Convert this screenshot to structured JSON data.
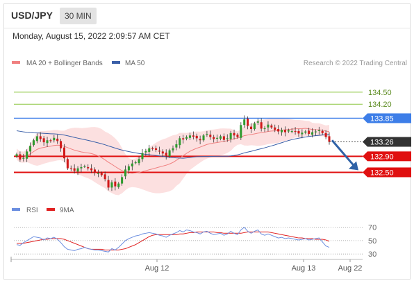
{
  "header": {
    "symbol": "USD/JPY",
    "timeframe": "30 MIN",
    "datetime": "Monday, August 15, 2022 2:09:57 AM CET"
  },
  "legend": {
    "items": [
      {
        "label": "MA 20 + Bollinger Bands",
        "color": "#f08080"
      },
      {
        "label": "MA 50",
        "color": "#3a5fa8"
      }
    ],
    "credit": "Research © 2022 Trading Central"
  },
  "rsi_legend": {
    "items": [
      {
        "label": "RSI",
        "color": "#6b8ee0"
      },
      {
        "label": "9MA",
        "color": "#e02020"
      }
    ]
  },
  "chart_data": [
    {
      "type": "candlestick",
      "ylim": [
        131.85,
        135.0
      ],
      "price_levels": [
        {
          "value": 134.5,
          "label": "134.50",
          "role": "resistance",
          "color": "#8cc63f"
        },
        {
          "value": 134.2,
          "label": "134.20",
          "role": "resistance",
          "color": "#8cc63f"
        },
        {
          "value": 133.85,
          "label": "133.85",
          "role": "pivot",
          "color": "#3d7ee8"
        },
        {
          "value": 132.9,
          "label": "132.90",
          "role": "support",
          "color": "#e01010"
        },
        {
          "value": 132.5,
          "label": "132.50",
          "role": "support",
          "color": "#e01010"
        }
      ],
      "last_price": {
        "value": 133.26,
        "label": "133.26"
      },
      "close": [
        132.95,
        132.82,
        132.86,
        133.02,
        133.16,
        133.3,
        133.4,
        133.33,
        133.25,
        133.3,
        133.28,
        133.36,
        133.28,
        133.1,
        132.85,
        132.6,
        132.58,
        132.54,
        132.6,
        132.63,
        132.65,
        132.6,
        132.55,
        132.5,
        132.48,
        132.43,
        132.33,
        132.12,
        132.25,
        132.15,
        132.22,
        132.38,
        132.57,
        132.65,
        132.72,
        132.75,
        132.83,
        132.98,
        133.03,
        133.1,
        133.08,
        133.06,
        133.02,
        132.97,
        132.92,
        133.05,
        133.1,
        133.2,
        133.35,
        133.32,
        133.38,
        133.42,
        133.39,
        133.35,
        133.3,
        133.42,
        133.46,
        133.38,
        133.33,
        133.36,
        133.4,
        133.31,
        133.35,
        133.48,
        133.42,
        133.38,
        133.68,
        133.82,
        133.66,
        133.58,
        133.72,
        133.77,
        133.59,
        133.6,
        133.69,
        133.62,
        133.56,
        133.52,
        133.56,
        133.5,
        133.55,
        133.53,
        133.51,
        133.47,
        133.49,
        133.52,
        133.46,
        133.5,
        133.52,
        133.55,
        133.48,
        133.38,
        133.26
      ],
      "x_ticks": [
        "Aug 12",
        "Aug 13",
        "Aug 22"
      ],
      "forecast": {
        "from": 133.3,
        "to": 132.5
      }
    },
    {
      "type": "line",
      "title": "RSI",
      "ylim": [
        25,
        80
      ],
      "levels": [
        70,
        50,
        30
      ],
      "series": [
        {
          "name": "RSI",
          "color": "#6b8ee0"
        },
        {
          "name": "9MA",
          "color": "#e02020"
        }
      ],
      "rsi": [
        44,
        43,
        47,
        50,
        53,
        56,
        55,
        54,
        51,
        54,
        53,
        55,
        52,
        47,
        41,
        37,
        36,
        35,
        37,
        38,
        40,
        38,
        37,
        36,
        36,
        35,
        34,
        33,
        38,
        36,
        40,
        45,
        50,
        53,
        55,
        57,
        58,
        60,
        61,
        62,
        61,
        60,
        58,
        57,
        55,
        58,
        60,
        62,
        65,
        63,
        66,
        65,
        63,
        62,
        60,
        63,
        64,
        61,
        59,
        60,
        61,
        58,
        60,
        64,
        61,
        59,
        66,
        70,
        64,
        61,
        64,
        66,
        60,
        58,
        60,
        58,
        56,
        54,
        55,
        53,
        54,
        53,
        52,
        51,
        52,
        53,
        51,
        52,
        53,
        54,
        48,
        42,
        40
      ],
      "ma9": [
        46,
        46,
        46,
        47,
        48,
        49,
        50,
        51,
        52,
        52,
        53,
        53,
        53,
        53,
        52,
        50,
        48,
        46,
        44,
        42,
        40,
        38,
        37,
        37,
        37,
        37,
        36,
        36,
        36,
        36,
        36,
        37,
        38,
        40,
        42,
        44,
        47,
        50,
        53,
        56,
        58,
        59,
        59,
        59,
        59,
        59,
        59,
        59,
        60,
        60,
        61,
        62,
        62,
        63,
        63,
        63,
        63,
        63,
        63,
        62,
        62,
        61,
        61,
        61,
        61,
        61,
        61,
        62,
        63,
        63,
        63,
        63,
        63,
        63,
        63,
        62,
        61,
        60,
        59,
        58,
        57,
        56,
        55,
        54,
        54,
        53,
        53,
        53,
        52,
        52,
        52,
        51,
        49
      ]
    }
  ]
}
